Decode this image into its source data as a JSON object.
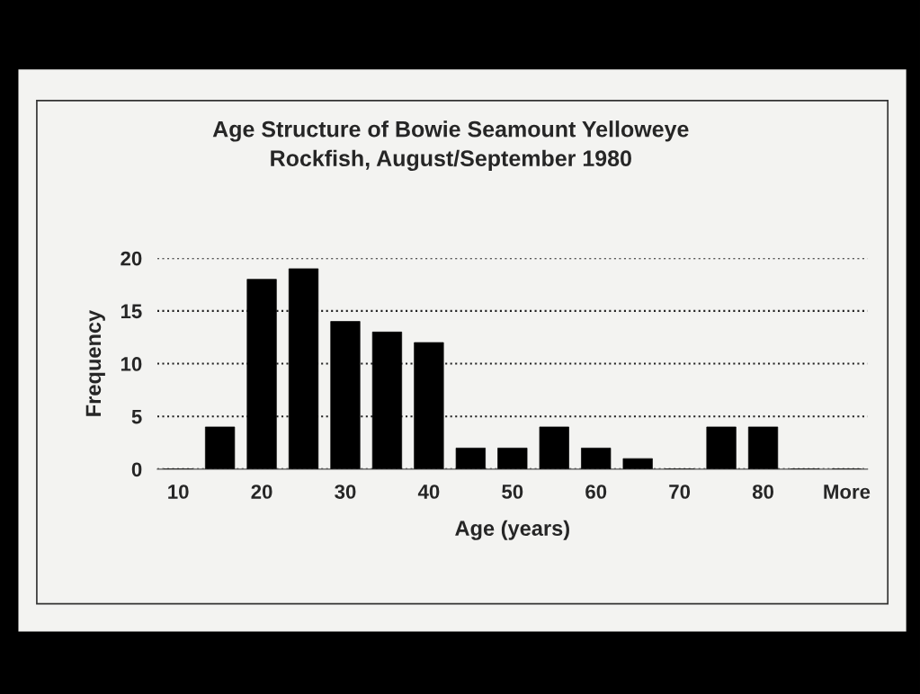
{
  "chart_data": {
    "type": "bar",
    "title": "Age Structure of Bowie Seamount Yelloweye\nRockfish, August/September 1980",
    "xlabel": "Age (years)",
    "ylabel": "Frequency",
    "categories": [
      "10",
      null,
      "20",
      null,
      "30",
      null,
      "40",
      null,
      "50",
      null,
      "60",
      null,
      "70",
      null,
      "80",
      null,
      "More"
    ],
    "values": [
      0,
      4,
      18,
      19,
      14,
      13,
      12,
      2,
      2,
      4,
      2,
      1,
      0,
      4,
      4,
      0,
      0
    ],
    "color": "#000000",
    "ylim": [
      0,
      20
    ],
    "yticks": [
      0,
      5,
      10,
      15,
      20
    ],
    "grid": "y",
    "line_style": "dotted"
  }
}
